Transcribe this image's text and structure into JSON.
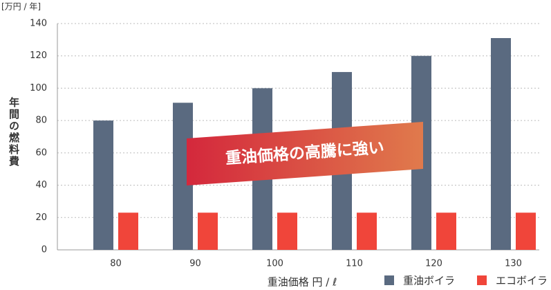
{
  "chart_data": {
    "type": "bar",
    "unit_label": "[万円 / 年]",
    "y_label": "年間の燃料費",
    "x_label": "重油価格 円 / ℓ",
    "annotation": "重油価格の高騰に強い",
    "categories": [
      "80",
      "90",
      "100",
      "110",
      "120",
      "130"
    ],
    "series": [
      {
        "name": "重油ボイラ",
        "color": "#5a6a80",
        "values": [
          80,
          91,
          100,
          110,
          120,
          131
        ]
      },
      {
        "name": "エコボイラ",
        "color": "#f0453a",
        "values": [
          23,
          23,
          23,
          23,
          23,
          23
        ]
      }
    ],
    "ylim": [
      0,
      140
    ],
    "yticks": [
      0,
      20,
      40,
      60,
      80,
      100,
      120,
      140
    ],
    "grid": true
  }
}
